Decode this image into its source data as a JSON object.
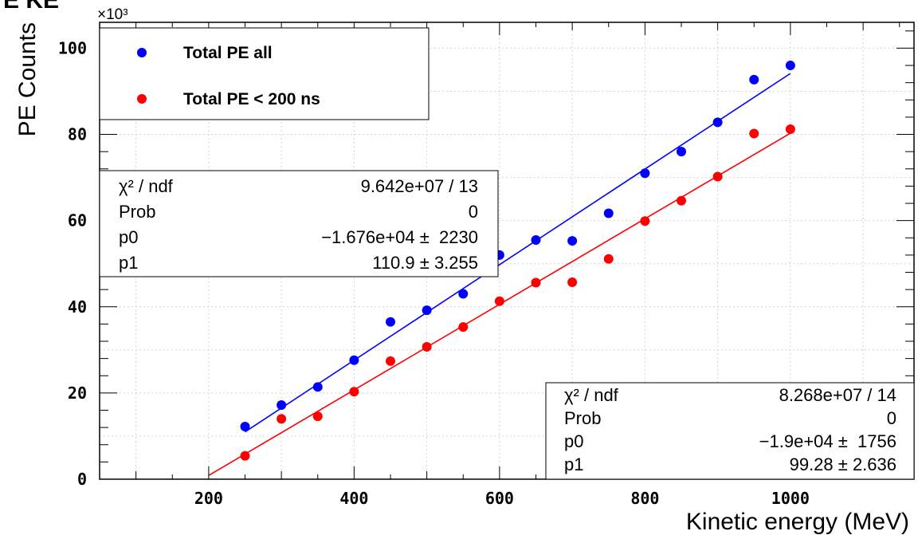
{
  "chart_data": {
    "type": "scatter",
    "title_fragment": "E KE",
    "xlabel": "Kinetic energy (MeV)",
    "ylabel": "PE Counts",
    "y_multiplier_label": "×10³",
    "xlim": [
      50,
      1170
    ],
    "ylim": [
      0,
      106
    ],
    "x_ticks": [
      200,
      400,
      600,
      800,
      1000
    ],
    "y_ticks": [
      0,
      20,
      40,
      60,
      80,
      100
    ],
    "grid": true,
    "legend_position": "top-left",
    "series": [
      {
        "name": "Total PE all",
        "color": "#0000ff",
        "x": [
          250,
          300,
          350,
          400,
          450,
          500,
          550,
          600,
          650,
          700,
          750,
          800,
          850,
          900,
          950,
          1000
        ],
        "y": [
          12.2,
          17.2,
          21.4,
          27.6,
          36.5,
          39.2,
          43.0,
          52.0,
          55.5,
          55.3,
          61.7,
          71.0,
          76.0,
          82.8,
          92.7,
          96.0
        ],
        "fit": {
          "p0": -16760,
          "p1": 110.9,
          "x_start": 250,
          "x_end": 1000
        }
      },
      {
        "name": "Total PE < 200 ns",
        "color": "#ff0000",
        "x": [
          250,
          300,
          350,
          400,
          450,
          500,
          550,
          600,
          650,
          700,
          750,
          800,
          850,
          900,
          950,
          1000
        ],
        "y": [
          5.4,
          14.0,
          14.6,
          20.3,
          27.4,
          30.7,
          35.3,
          41.3,
          45.6,
          45.7,
          51.1,
          59.9,
          64.6,
          70.2,
          80.2,
          81.2
        ],
        "fit": {
          "p0": -19000,
          "p1": 99.28,
          "x_start": 200,
          "x_end": 1000
        }
      }
    ],
    "stats_boxes": [
      {
        "position": "upper-left",
        "rows": [
          {
            "label": "χ² / ndf",
            "value": "9.642e+07 / 13"
          },
          {
            "label": "Prob",
            "value": "0"
          },
          {
            "label": "p0",
            "value": "−1.676e+04 ±  2230"
          },
          {
            "label": "p1",
            "value": "110.9 ± 3.255"
          }
        ]
      },
      {
        "position": "lower-right",
        "rows": [
          {
            "label": "χ² / ndf",
            "value": "8.268e+07 / 14"
          },
          {
            "label": "Prob",
            "value": "0"
          },
          {
            "label": "p0",
            "value": "−1.9e+04 ±  1756"
          },
          {
            "label": "p1",
            "value": "99.28 ± 2.636"
          }
        ]
      }
    ]
  }
}
